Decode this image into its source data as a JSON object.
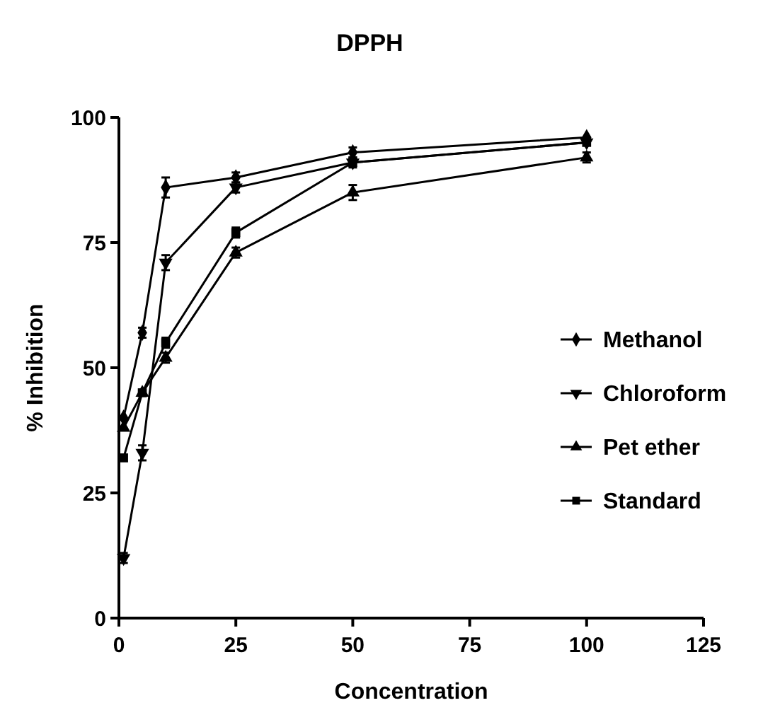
{
  "chart_data": {
    "type": "line",
    "title": "DPPH",
    "xlabel": "Concentration",
    "ylabel": "% Inhibition",
    "x": [
      1,
      5,
      10,
      25,
      50,
      100
    ],
    "series": [
      {
        "name": "Methanol",
        "color": "#000000",
        "marker": "diamond",
        "values": [
          40,
          57,
          86,
          88,
          93,
          96
        ],
        "errors": [
          null,
          1,
          2,
          1,
          1,
          null
        ]
      },
      {
        "name": "Chloroform",
        "color": "#000000",
        "marker": "triangle-down",
        "values": [
          12,
          33,
          71,
          86,
          91,
          95
        ],
        "errors": [
          1,
          1.5,
          1.5,
          1,
          null,
          null
        ]
      },
      {
        "name": "Pet ether",
        "color": "#000000",
        "marker": "triangle",
        "values": [
          38,
          45,
          52,
          73,
          85,
          92
        ],
        "errors": [
          null,
          null,
          1,
          1,
          1.5,
          1
        ]
      },
      {
        "name": "Standard",
        "color": "#000000",
        "marker": "square",
        "values": [
          32,
          45,
          55,
          77,
          91,
          95
        ],
        "errors": [
          null,
          null,
          1,
          1,
          1,
          null
        ]
      }
    ],
    "xlim": [
      0,
      125
    ],
    "xticks": [
      0,
      25,
      50,
      75,
      100,
      125
    ],
    "ylim": [
      0,
      100
    ],
    "yticks": [
      0,
      25,
      50,
      75,
      100
    ],
    "grid": false,
    "legend": "right"
  }
}
